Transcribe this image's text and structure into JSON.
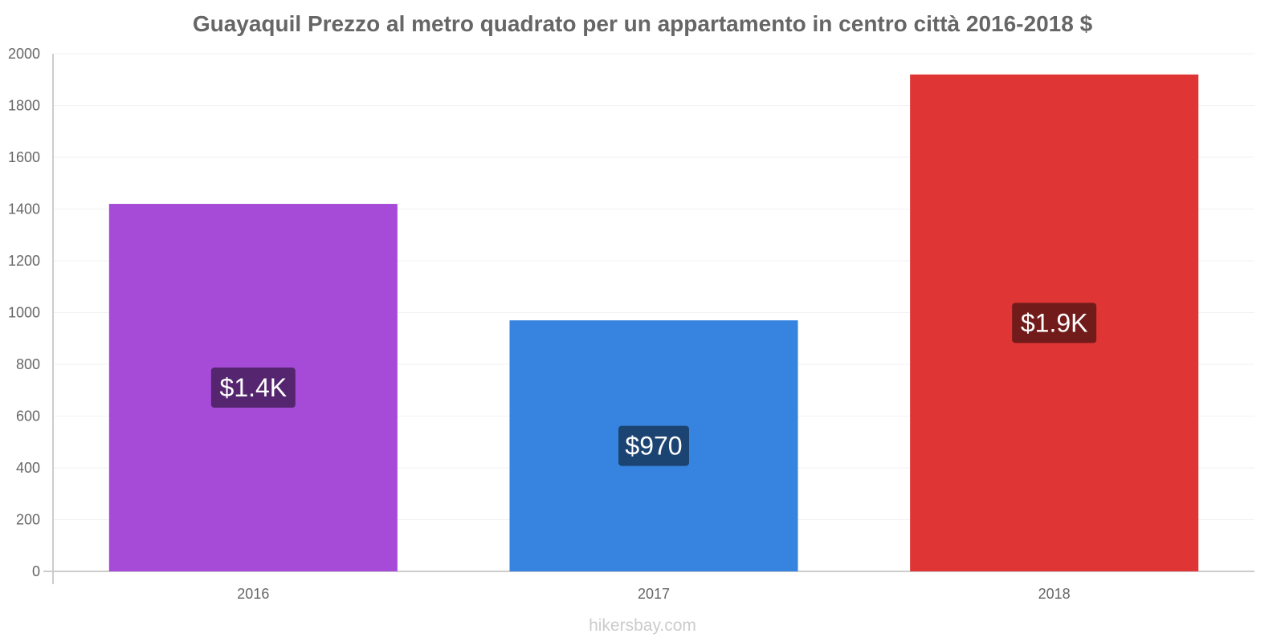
{
  "title": "Guayaquil Prezzo al metro quadrato per un appartamento in centro città 2016-2018 $",
  "source": "hikersbay.com",
  "chart_data": {
    "type": "bar",
    "title": "Guayaquil Prezzo al metro quadrato per un appartamento in centro città 2016-2018 $",
    "xlabel": "",
    "ylabel": "",
    "categories": [
      "2016",
      "2017",
      "2018"
    ],
    "values": [
      1420,
      970,
      1920
    ],
    "data_labels": [
      "$1.4K",
      "$970",
      "$1.9K"
    ],
    "colors": [
      "#a64ad8",
      "#3684e0",
      "#e03535"
    ],
    "label_bg_colors": [
      "#55266f",
      "#1c4472",
      "#721b1b"
    ],
    "ylim": [
      0,
      2000
    ],
    "yticks": [
      0,
      200,
      400,
      600,
      800,
      1000,
      1200,
      1400,
      1600,
      1800,
      2000
    ],
    "grid": true,
    "legend": "none"
  }
}
